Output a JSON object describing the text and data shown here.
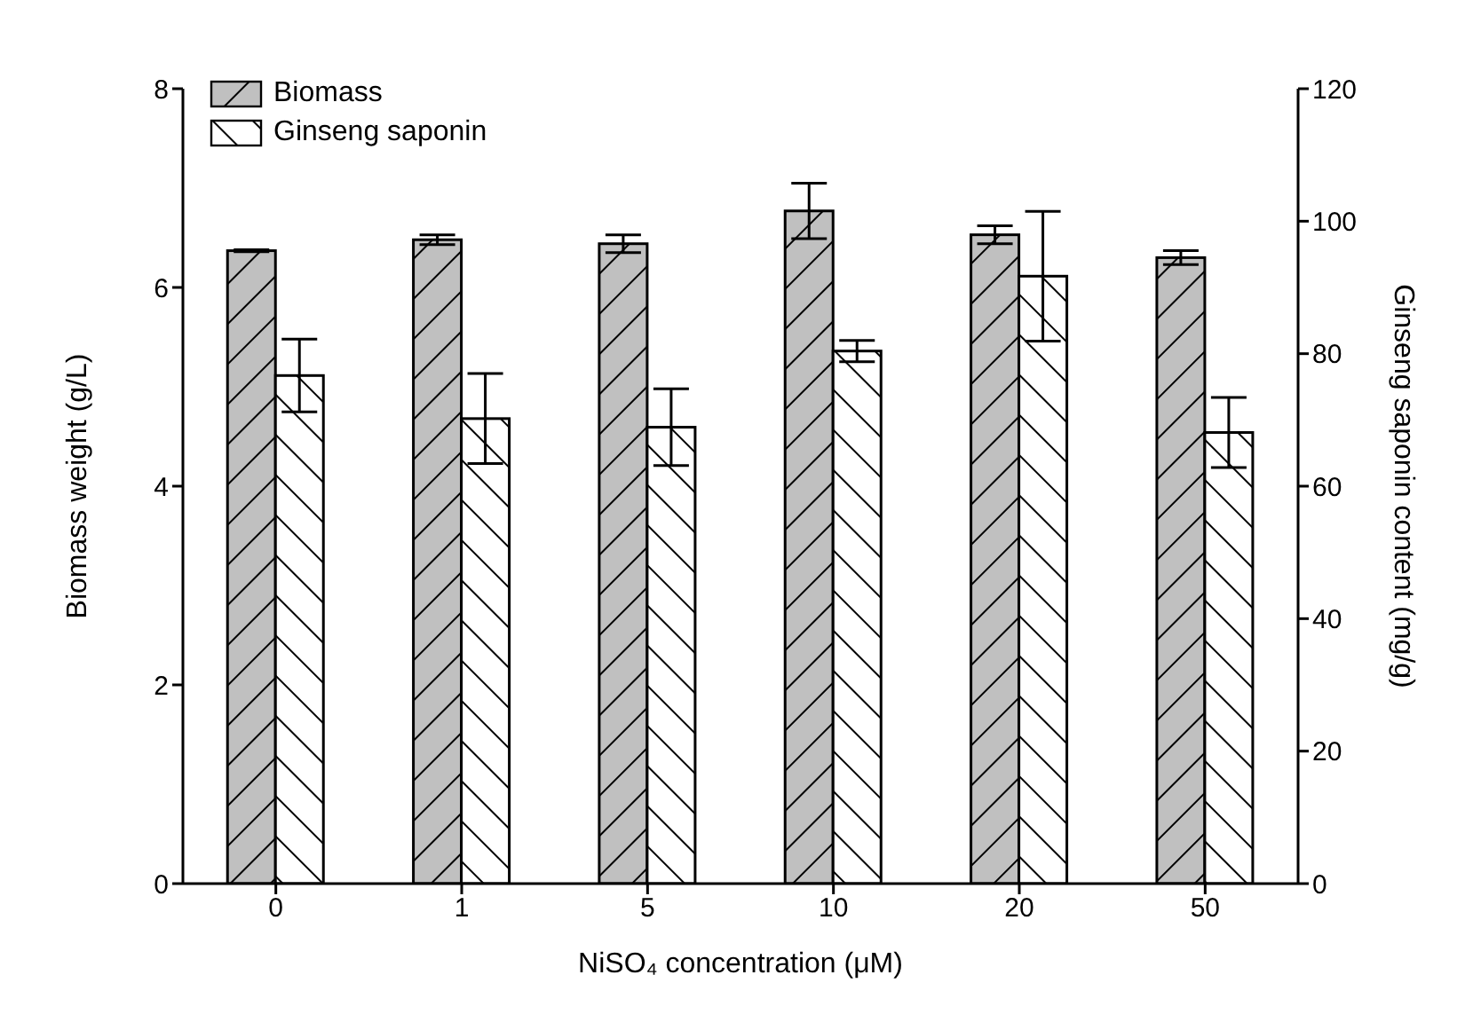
{
  "chart_data": {
    "type": "bar",
    "xlabel": "NiSO₄ concentration (μM)",
    "ylabel": "Biomass weight (g/L)",
    "y2label": "Ginseng saponin content (mg/g)",
    "categories": [
      "0",
      "1",
      "5",
      "10",
      "20",
      "50"
    ],
    "series": [
      {
        "name": "Biomass",
        "color": "#c0c0c0",
        "values": [
          6.37,
          6.48,
          6.44,
          6.77,
          6.53,
          6.3
        ],
        "errors": [
          0.01,
          0.05,
          0.09,
          0.28,
          0.09,
          0.07
        ]
      },
      {
        "name": "Ginseng saponin",
        "color": "#ffffff",
        "axis": "y2",
        "values": [
          76.7,
          70.2,
          68.9,
          80.4,
          91.7,
          68.1
        ],
        "errors": [
          5.5,
          6.8,
          5.8,
          1.6,
          9.8,
          5.3
        ]
      }
    ],
    "ylim": [
      0,
      8
    ],
    "yticks": [
      0,
      2,
      4,
      6,
      8
    ],
    "y2lim": [
      0,
      120
    ],
    "y2ticks": [
      0,
      20,
      40,
      60,
      80,
      100,
      120
    ],
    "grid": false,
    "legend": "top left"
  }
}
